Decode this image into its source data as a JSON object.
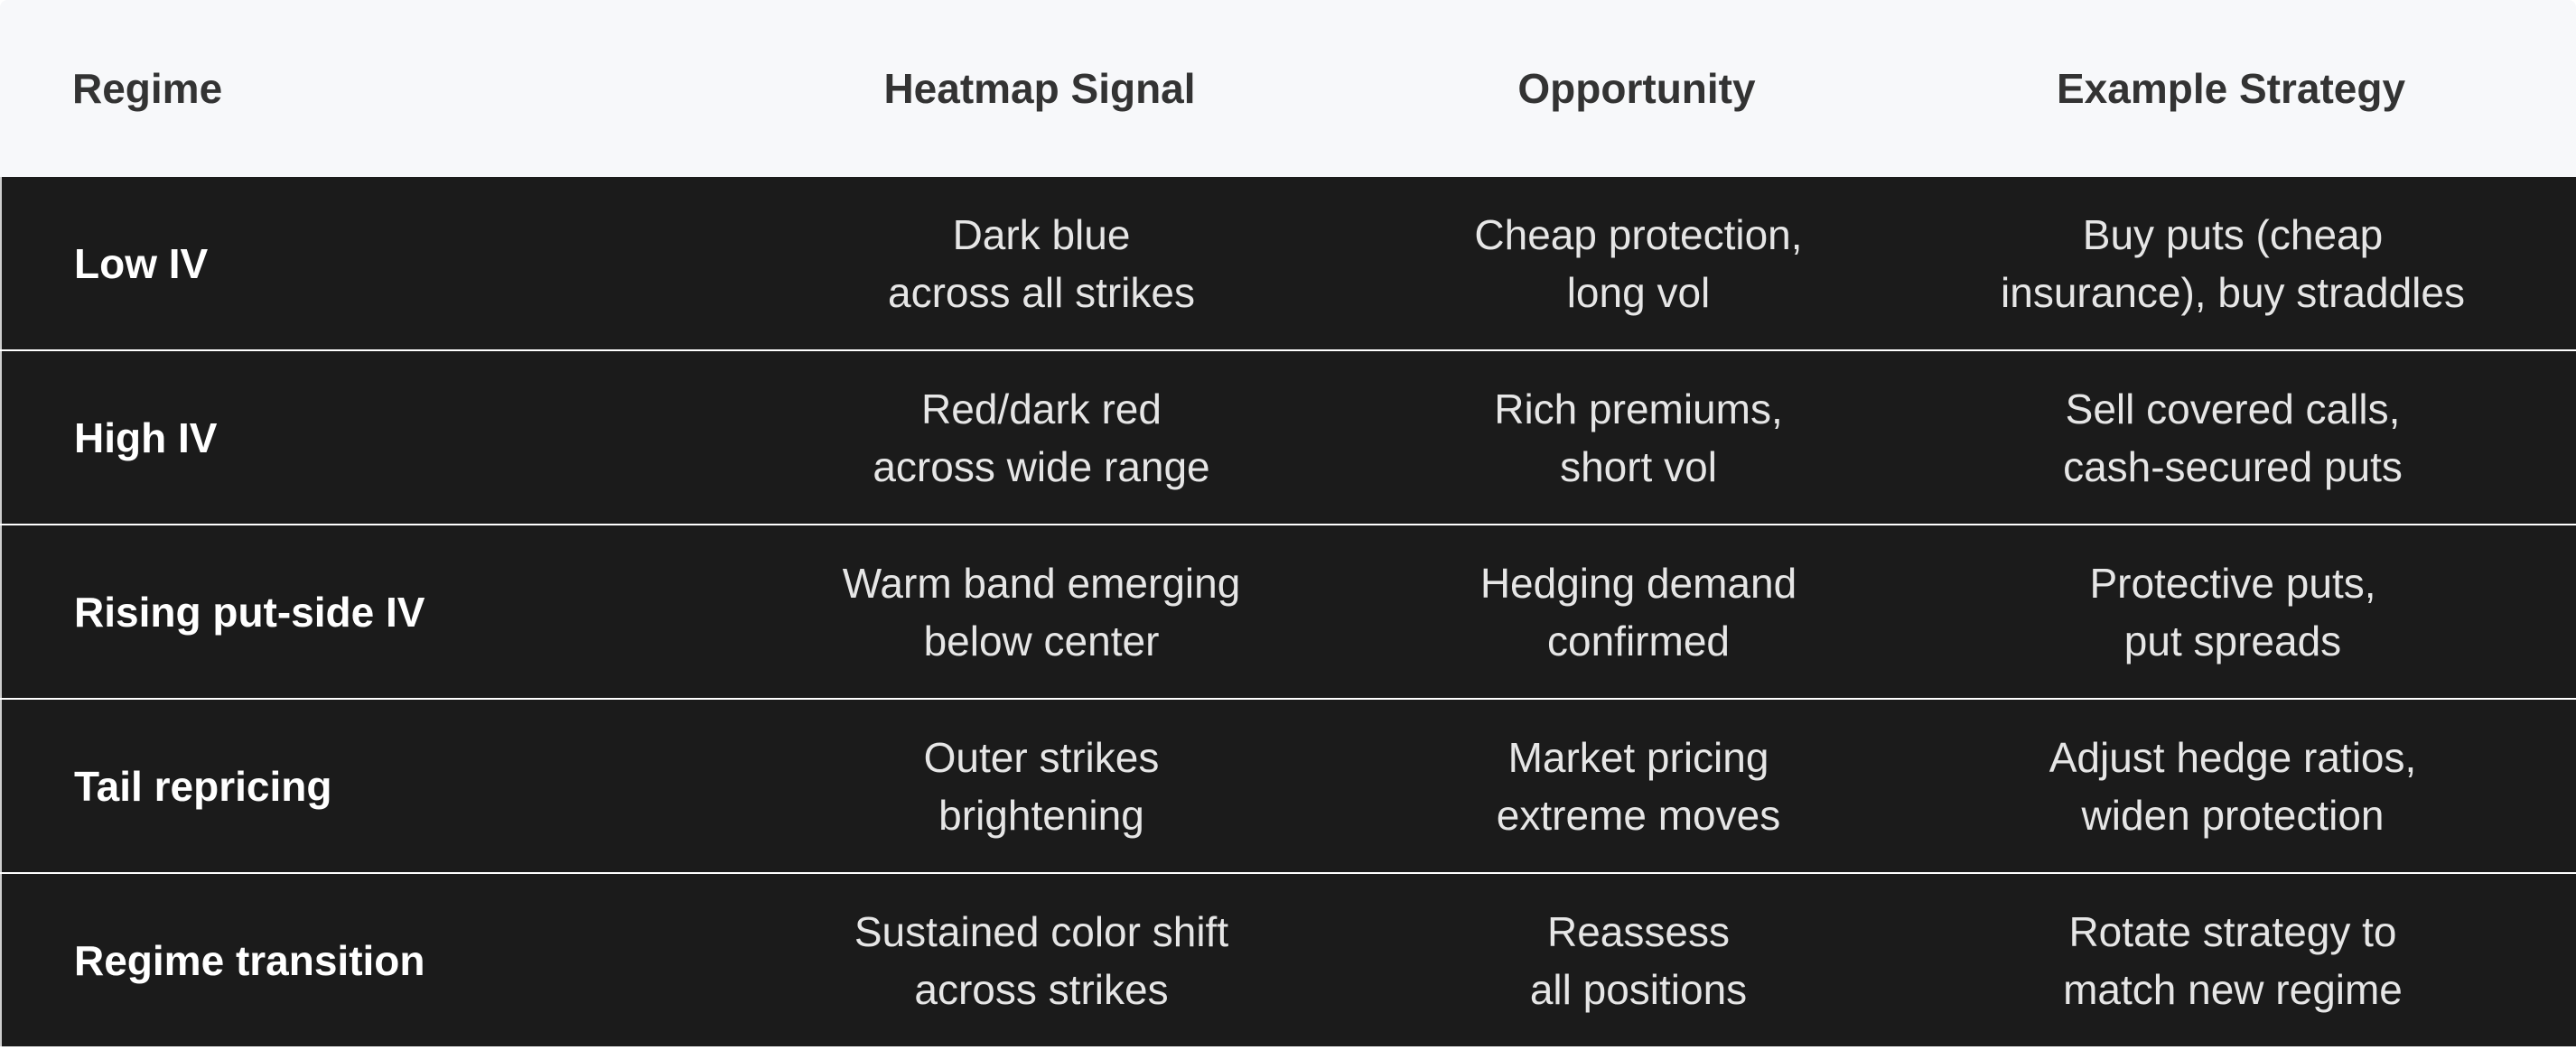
{
  "table": {
    "headers": [
      "Regime",
      "Heatmap Signal",
      "Opportunity",
      "Example Strategy"
    ],
    "rows": [
      {
        "regime": "Low IV",
        "signal": [
          "Dark blue",
          "across all strikes"
        ],
        "opportunity": [
          "Cheap protection,",
          "long vol"
        ],
        "strategy": [
          "Buy puts (cheap",
          "insurance), buy straddles"
        ]
      },
      {
        "regime": "High IV",
        "signal": [
          "Red/dark red",
          "across wide range"
        ],
        "opportunity": [
          "Rich premiums,",
          "short vol"
        ],
        "strategy": [
          "Sell covered calls,",
          "cash-secured puts"
        ]
      },
      {
        "regime": "Rising put-side IV",
        "signal": [
          "Warm band emerging",
          "below center"
        ],
        "opportunity": [
          "Hedging demand",
          "confirmed"
        ],
        "strategy": [
          "Protective puts,",
          "put spreads"
        ]
      },
      {
        "regime": "Tail repricing",
        "signal": [
          "Outer strikes",
          "brightening"
        ],
        "opportunity": [
          "Market pricing",
          "extreme moves"
        ],
        "strategy": [
          "Adjust hedge ratios,",
          "widen protection"
        ]
      },
      {
        "regime": "Regime transition",
        "signal": [
          "Sustained color shift",
          "across strikes"
        ],
        "opportunity": [
          "Reassess",
          "all positions"
        ],
        "strategy": [
          "Rotate strategy to",
          "match new regime"
        ]
      }
    ]
  },
  "colors": {
    "header_bg": "#f7f8fa",
    "row_bg": "#1b1b1b",
    "header_text": "#333333",
    "row_text": "#e6e6e6"
  }
}
